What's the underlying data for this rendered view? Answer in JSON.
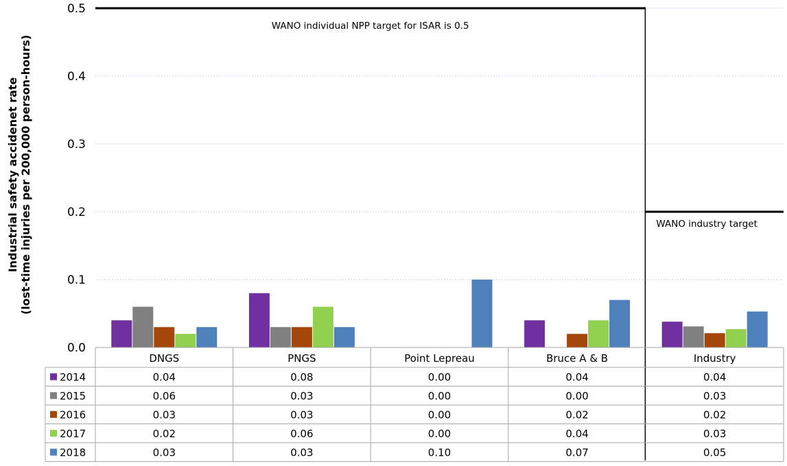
{
  "chart_data": {
    "type": "bar",
    "title": "",
    "xlabel": "",
    "ylabel_line1": "Industrial safety accidenet rate",
    "ylabel_line2": "(lost-time injuries per 200,000 person-hours)",
    "ylim": [
      0,
      0.5
    ],
    "yticks": [
      "0.0",
      "0.1",
      "0.2",
      "0.3",
      "0.4",
      "0.5"
    ],
    "ytick_values": [
      0,
      0.1,
      0.2,
      0.3,
      0.4,
      0.5
    ],
    "grid": true,
    "legend": "data-table-left",
    "categories": [
      "DNGS",
      "PNGS",
      "Point Lepreau",
      "Bruce A & B",
      "Industry"
    ],
    "series": [
      {
        "name": "2014",
        "color": "#7030a0",
        "values": [
          0.04,
          0.08,
          0.0,
          0.04,
          0.038
        ],
        "labels": [
          "0.04",
          "0.08",
          "0.00",
          "0.04",
          "0.04"
        ]
      },
      {
        "name": "2015",
        "color": "#808080",
        "values": [
          0.06,
          0.03,
          0.0,
          0.0,
          0.031
        ],
        "labels": [
          "0.06",
          "0.03",
          "0.00",
          "0.00",
          "0.03"
        ]
      },
      {
        "name": "2016",
        "color": "#a5460a",
        "values": [
          0.03,
          0.03,
          0.0,
          0.02,
          0.021
        ],
        "labels": [
          "0.03",
          "0.03",
          "0.00",
          "0.02",
          "0.02"
        ]
      },
      {
        "name": "2017",
        "color": "#92d050",
        "values": [
          0.02,
          0.06,
          0.0,
          0.04,
          0.027
        ],
        "labels": [
          "0.02",
          "0.06",
          "0.00",
          "0.04",
          "0.03"
        ]
      },
      {
        "name": "2018",
        "color": "#4f81bd",
        "values": [
          0.03,
          0.03,
          0.1,
          0.07,
          0.053
        ],
        "labels": [
          "0.03",
          "0.03",
          "0.10",
          "0.07",
          "0.05"
        ]
      }
    ],
    "annotations": {
      "npp_target_text": "WANO individual NPP target for ISAR is 0.5",
      "npp_target_value": 0.5,
      "industry_target_text": "WANO industry target",
      "industry_target_value": 0.2
    }
  }
}
